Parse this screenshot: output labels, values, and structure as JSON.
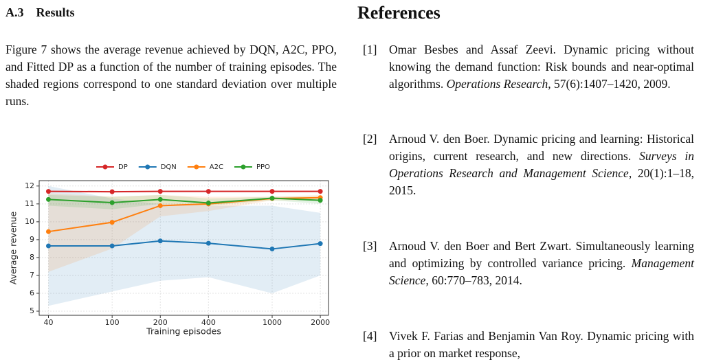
{
  "section": {
    "number": "A.3",
    "title": "Results"
  },
  "paragraph": "Figure 7 shows the average revenue achieved by DQN, A2C, PPO, and Fitted DP as a function of the number of training episodes. The shaded regions correspond to one standard deviation over multiple runs.",
  "chart_data": {
    "type": "line",
    "x": [
      40,
      100,
      200,
      400,
      1000,
      2000
    ],
    "xlabel": "Training episodes",
    "ylabel": "Average revenue",
    "xscale": "log",
    "xlim": [
      35,
      2250
    ],
    "ylim": [
      4.77,
      12.3
    ],
    "xticks": [
      40,
      100,
      200,
      400,
      1000,
      2000
    ],
    "yticks": [
      5,
      6,
      7,
      8,
      9,
      10,
      11,
      12
    ],
    "grid": true,
    "legend": "top",
    "series": [
      {
        "name": "DP",
        "color": "#d62728",
        "values": [
          11.7,
          11.68,
          11.7,
          11.7,
          11.7,
          11.7
        ],
        "lower": [
          11.65,
          11.63,
          11.65,
          11.65,
          11.65,
          11.65
        ],
        "upper": [
          11.75,
          11.73,
          11.75,
          11.75,
          11.75,
          11.75
        ]
      },
      {
        "name": "DQN",
        "color": "#1f77b4",
        "values": [
          8.65,
          8.65,
          8.93,
          8.8,
          8.48,
          8.78
        ],
        "lower": [
          5.3,
          6.1,
          6.7,
          6.9,
          6.0,
          7.0
        ],
        "upper": [
          12.0,
          11.3,
          11.0,
          10.9,
          10.9,
          10.5
        ]
      },
      {
        "name": "A2C",
        "color": "#ff7f0e",
        "values": [
          9.45,
          9.97,
          10.9,
          11.0,
          11.3,
          11.35
        ],
        "lower": [
          7.2,
          8.5,
          10.3,
          10.6,
          11.2,
          11.2
        ],
        "upper": [
          11.6,
          11.4,
          11.5,
          11.4,
          11.4,
          11.5
        ]
      },
      {
        "name": "PPO",
        "color": "#2ca02c",
        "values": [
          11.25,
          11.07,
          11.25,
          11.05,
          11.32,
          11.2
        ],
        "lower": [
          10.9,
          10.7,
          11.0,
          10.9,
          11.2,
          11.0
        ],
        "upper": [
          11.5,
          11.4,
          11.5,
          11.3,
          11.4,
          11.4
        ]
      }
    ]
  },
  "references": {
    "title": "References",
    "items": [
      {
        "label": "[1]",
        "text": "Omar Besbes and Assaf Zeevi. Dynamic pricing without knowing the demand function: Risk bounds and near-optimal algorithms.",
        "venue": "Operations Research",
        "rest": ", 57(6):1407–1420, 2009."
      },
      {
        "label": "[2]",
        "text": "Arnoud V. den Boer. Dynamic pricing and learning: Historical origins, current research, and new directions.",
        "venue": "Surveys in Operations Research and Management Science",
        "rest": ", 20(1):1–18, 2015."
      },
      {
        "label": "[3]",
        "text": "Arnoud V. den Boer and Bert Zwart. Simultaneously learning and optimizing by controlled variance pricing.",
        "venue": "Management Science",
        "rest": ", 60:770–783, 2014."
      },
      {
        "label": "[4]",
        "text": "Vivek F. Farias and Benjamin Van Roy. Dynamic pricing with a prior on market response,",
        "venue": "",
        "rest": ""
      }
    ]
  }
}
